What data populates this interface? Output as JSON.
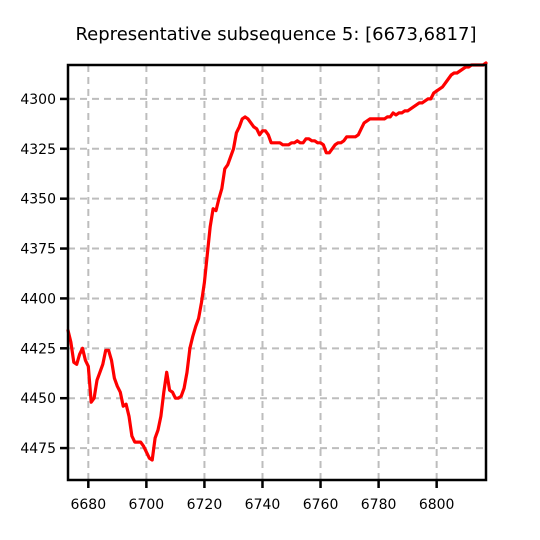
{
  "chart_data": {
    "type": "line",
    "title": "Representative subsequence 5: [6673,6817]",
    "xlabel": "",
    "ylabel": "",
    "xlim": [
      6673,
      6817
    ],
    "ylim": [
      4491,
      4283
    ],
    "y_inverted": true,
    "grid": true,
    "x_ticks": [
      6680,
      6700,
      6720,
      6740,
      6760,
      6780,
      6800
    ],
    "x_tick_labels": [
      "6680",
      "6700",
      "6720",
      "6740",
      "6760",
      "6780",
      "6800"
    ],
    "y_ticks": [
      4300,
      4325,
      4350,
      4375,
      4400,
      4425,
      4450,
      4475
    ],
    "y_tick_labels": [
      "4300",
      "4325",
      "4350",
      "4375",
      "4400",
      "4425",
      "4450",
      "4475"
    ],
    "series": [
      {
        "color": "#ff0000",
        "x": [
          6673,
          6674,
          6675,
          6676,
          6677,
          6678,
          6679,
          6680,
          6681,
          6682,
          6683,
          6684,
          6685,
          6686,
          6687,
          6688,
          6689,
          6690,
          6691,
          6692,
          6693,
          6694,
          6695,
          6696,
          6697,
          6698,
          6699,
          6700,
          6701,
          6702,
          6703,
          6704,
          6705,
          6706,
          6707,
          6708,
          6709,
          6710,
          6711,
          6712,
          6713,
          6714,
          6715,
          6716,
          6717,
          6718,
          6719,
          6720,
          6721,
          6722,
          6723,
          6724,
          6725,
          6726,
          6727,
          6728,
          6729,
          6730,
          6731,
          6732,
          6733,
          6734,
          6735,
          6736,
          6737,
          6738,
          6739,
          6740,
          6741,
          6742,
          6743,
          6744,
          6745,
          6746,
          6747,
          6748,
          6749,
          6750,
          6751,
          6752,
          6753,
          6754,
          6755,
          6756,
          6757,
          6758,
          6759,
          6760,
          6761,
          6762,
          6763,
          6764,
          6765,
          6766,
          6767,
          6768,
          6769,
          6770,
          6771,
          6772,
          6773,
          6774,
          6775,
          6776,
          6777,
          6778,
          6779,
          6780,
          6781,
          6782,
          6783,
          6784,
          6785,
          6786,
          6787,
          6788,
          6789,
          6790,
          6791,
          6792,
          6793,
          6794,
          6795,
          6796,
          6797,
          6798,
          6799,
          6800,
          6801,
          6802,
          6803,
          6804,
          6805,
          6806,
          6807,
          6808,
          6809,
          6810,
          6811,
          6812,
          6813,
          6814,
          6815,
          6816,
          6817
        ],
        "values": [
          4416,
          4422,
          4432,
          4433,
          4428,
          4425,
          4431,
          4434,
          4452,
          4450,
          4441,
          4437,
          4433,
          4426,
          4426,
          4431,
          4440,
          4444,
          4447,
          4454,
          4453,
          4459,
          4469,
          4472,
          4472,
          4472,
          4474,
          4477,
          4480,
          4481,
          4470,
          4466,
          4459,
          4447,
          4437,
          4446,
          4447,
          4450,
          4450,
          4449,
          4445,
          4437,
          4425,
          4419,
          4414,
          4410,
          4402,
          4392,
          4378,
          4364,
          4355,
          4356,
          4350,
          4345,
          4335,
          4333,
          4329,
          4325,
          4317,
          4314,
          4310,
          4309,
          4310,
          4312,
          4314,
          4315,
          4318,
          4316,
          4316,
          4318,
          4322,
          4322,
          4322,
          4322,
          4323,
          4323,
          4323,
          4322,
          4322,
          4321,
          4322,
          4322,
          4320,
          4320,
          4321,
          4321,
          4322,
          4322,
          4323,
          4327,
          4327,
          4325,
          4323,
          4322,
          4322,
          4321,
          4319,
          4319,
          4319,
          4319,
          4318,
          4315,
          4312,
          4311,
          4310,
          4310,
          4310,
          4310,
          4310,
          4310,
          4309,
          4309,
          4307,
          4308,
          4307,
          4307,
          4306,
          4306,
          4305,
          4304,
          4303,
          4302,
          4302,
          4301,
          4300,
          4300,
          4297,
          4296,
          4295,
          4294,
          4292,
          4290,
          4288,
          4287,
          4287,
          4286,
          4285,
          4284,
          4284,
          4283,
          4283,
          4283,
          4283,
          4283,
          4282
        ]
      }
    ]
  }
}
